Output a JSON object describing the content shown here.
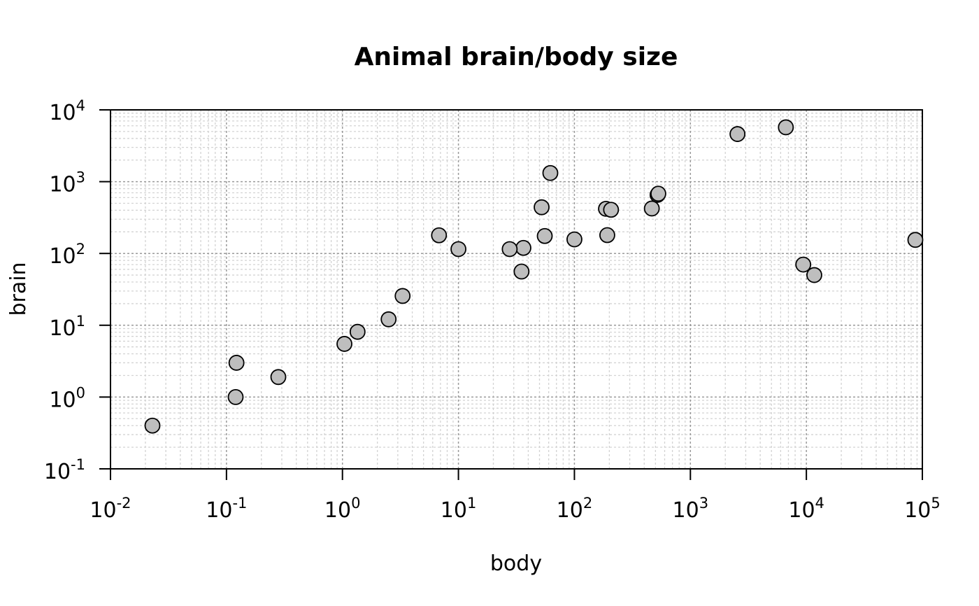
{
  "chart_data": {
    "type": "scatter",
    "title": "Animal brain/body size",
    "xlabel": "body",
    "ylabel": "brain",
    "x_scale": "log10",
    "y_scale": "log10",
    "xlim": [
      0.01,
      100000
    ],
    "ylim": [
      0.1,
      10000
    ],
    "x_tick_labels": [
      {
        "base": "10",
        "exp": "-2"
      },
      {
        "base": "10",
        "exp": "-1"
      },
      {
        "base": "10",
        "exp": "0"
      },
      {
        "base": "10",
        "exp": "1"
      },
      {
        "base": "10",
        "exp": "2"
      },
      {
        "base": "10",
        "exp": "3"
      },
      {
        "base": "10",
        "exp": "4"
      },
      {
        "base": "10",
        "exp": "5"
      }
    ],
    "y_tick_labels": [
      {
        "base": "10",
        "exp": "-1"
      },
      {
        "base": "10",
        "exp": "0"
      },
      {
        "base": "10",
        "exp": "1"
      },
      {
        "base": "10",
        "exp": "2"
      },
      {
        "base": "10",
        "exp": "3"
      },
      {
        "base": "10",
        "exp": "4"
      }
    ],
    "grid": true,
    "point_color": "#bebebe",
    "point_edge_color": "#000000",
    "points": [
      {
        "x": 1.35,
        "y": 8.1
      },
      {
        "x": 465,
        "y": 423
      },
      {
        "x": 36.33,
        "y": 119.5
      },
      {
        "x": 27.66,
        "y": 115
      },
      {
        "x": 1.04,
        "y": 5.5
      },
      {
        "x": 11700,
        "y": 50
      },
      {
        "x": 2547,
        "y": 4603
      },
      {
        "x": 187.1,
        "y": 419
      },
      {
        "x": 521,
        "y": 655
      },
      {
        "x": 10,
        "y": 115
      },
      {
        "x": 3.3,
        "y": 25.6
      },
      {
        "x": 529,
        "y": 680
      },
      {
        "x": 207,
        "y": 406
      },
      {
        "x": 62,
        "y": 1320
      },
      {
        "x": 6654,
        "y": 5712
      },
      {
        "x": 9400,
        "y": 70
      },
      {
        "x": 6.8,
        "y": 179
      },
      {
        "x": 35,
        "y": 56
      },
      {
        "x": 0.12,
        "y": 1
      },
      {
        "x": 0.023,
        "y": 0.4
      },
      {
        "x": 2.5,
        "y": 12.1
      },
      {
        "x": 55.5,
        "y": 175
      },
      {
        "x": 100,
        "y": 157
      },
      {
        "x": 52.16,
        "y": 440
      },
      {
        "x": 87000,
        "y": 154.5
      },
      {
        "x": 0.122,
        "y": 3
      },
      {
        "x": 192,
        "y": 180
      },
      {
        "x": 0.28,
        "y": 1.9
      }
    ]
  }
}
